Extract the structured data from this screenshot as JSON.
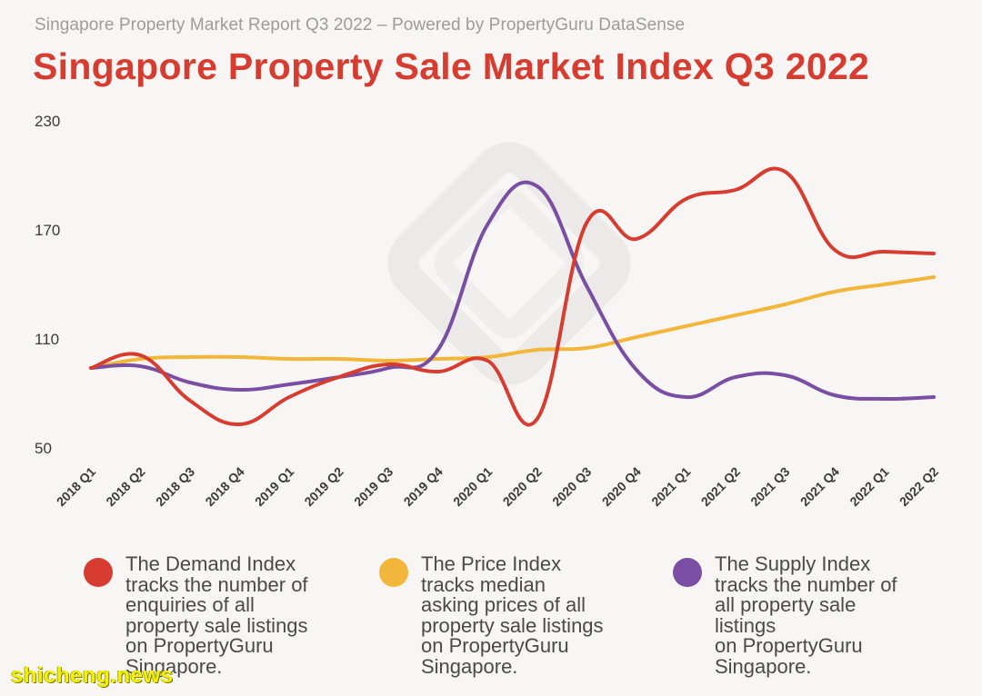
{
  "header": {
    "report_line": "Singapore Property Market Report Q3 2022 – Powered by PropertyGuru DataSense",
    "title": "Singapore Property Sale Market Index Q3 2022"
  },
  "chart_data": {
    "type": "line",
    "categories": [
      "2018 Q1",
      "2018 Q2",
      "2018 Q3",
      "2018 Q4",
      "2019 Q1",
      "2019 Q2",
      "2019 Q3",
      "2019 Q4",
      "2020 Q1",
      "2020 Q2",
      "2020 Q3",
      "2020 Q4",
      "2021 Q1",
      "2021 Q2",
      "2021 Q3",
      "2021 Q4",
      "2022 Q1",
      "2022 Q2"
    ],
    "y_ticks": [
      50,
      110,
      170,
      230
    ],
    "ylim": [
      50,
      230
    ],
    "grid": false,
    "legend_position": "bottom",
    "series": [
      {
        "key": "demand",
        "color": "#d63c2f",
        "values": [
          94,
          101,
          76,
          63,
          78,
          89,
          96,
          92,
          98,
          66,
          174,
          165,
          187,
          192,
          202,
          159,
          158,
          157
        ]
      },
      {
        "key": "price",
        "color": "#f2b73a",
        "values": [
          94,
          99,
          100,
          100,
          99,
          99,
          98,
          99,
          100,
          104,
          105,
          111,
          117,
          123,
          129,
          136,
          140,
          144
        ]
      },
      {
        "key": "supply",
        "color": "#7a4ea3",
        "values": [
          94,
          95,
          86,
          82,
          85,
          89,
          94,
          104,
          173,
          194,
          139,
          93,
          78,
          89,
          90,
          79,
          77,
          78
        ]
      }
    ]
  },
  "legend": [
    {
      "key": "demand",
      "color": "#d63c2f",
      "lines": [
        "The Demand Index",
        "tracks the number of",
        "enquiries of all",
        "property sale listings",
        "on PropertyGuru",
        "Singapore."
      ]
    },
    {
      "key": "price",
      "color": "#f2b73a",
      "lines": [
        "The Price Index",
        "tracks median",
        "asking prices of all",
        "property sale listings",
        "on PropertyGuru",
        "Singapore."
      ]
    },
    {
      "key": "supply",
      "color": "#7a4ea3",
      "lines": [
        "The Supply Index",
        "tracks the number of",
        "all property sale",
        "listings",
        "on PropertyGuru",
        "Singapore."
      ]
    }
  ],
  "watermark": "shicheng.news"
}
